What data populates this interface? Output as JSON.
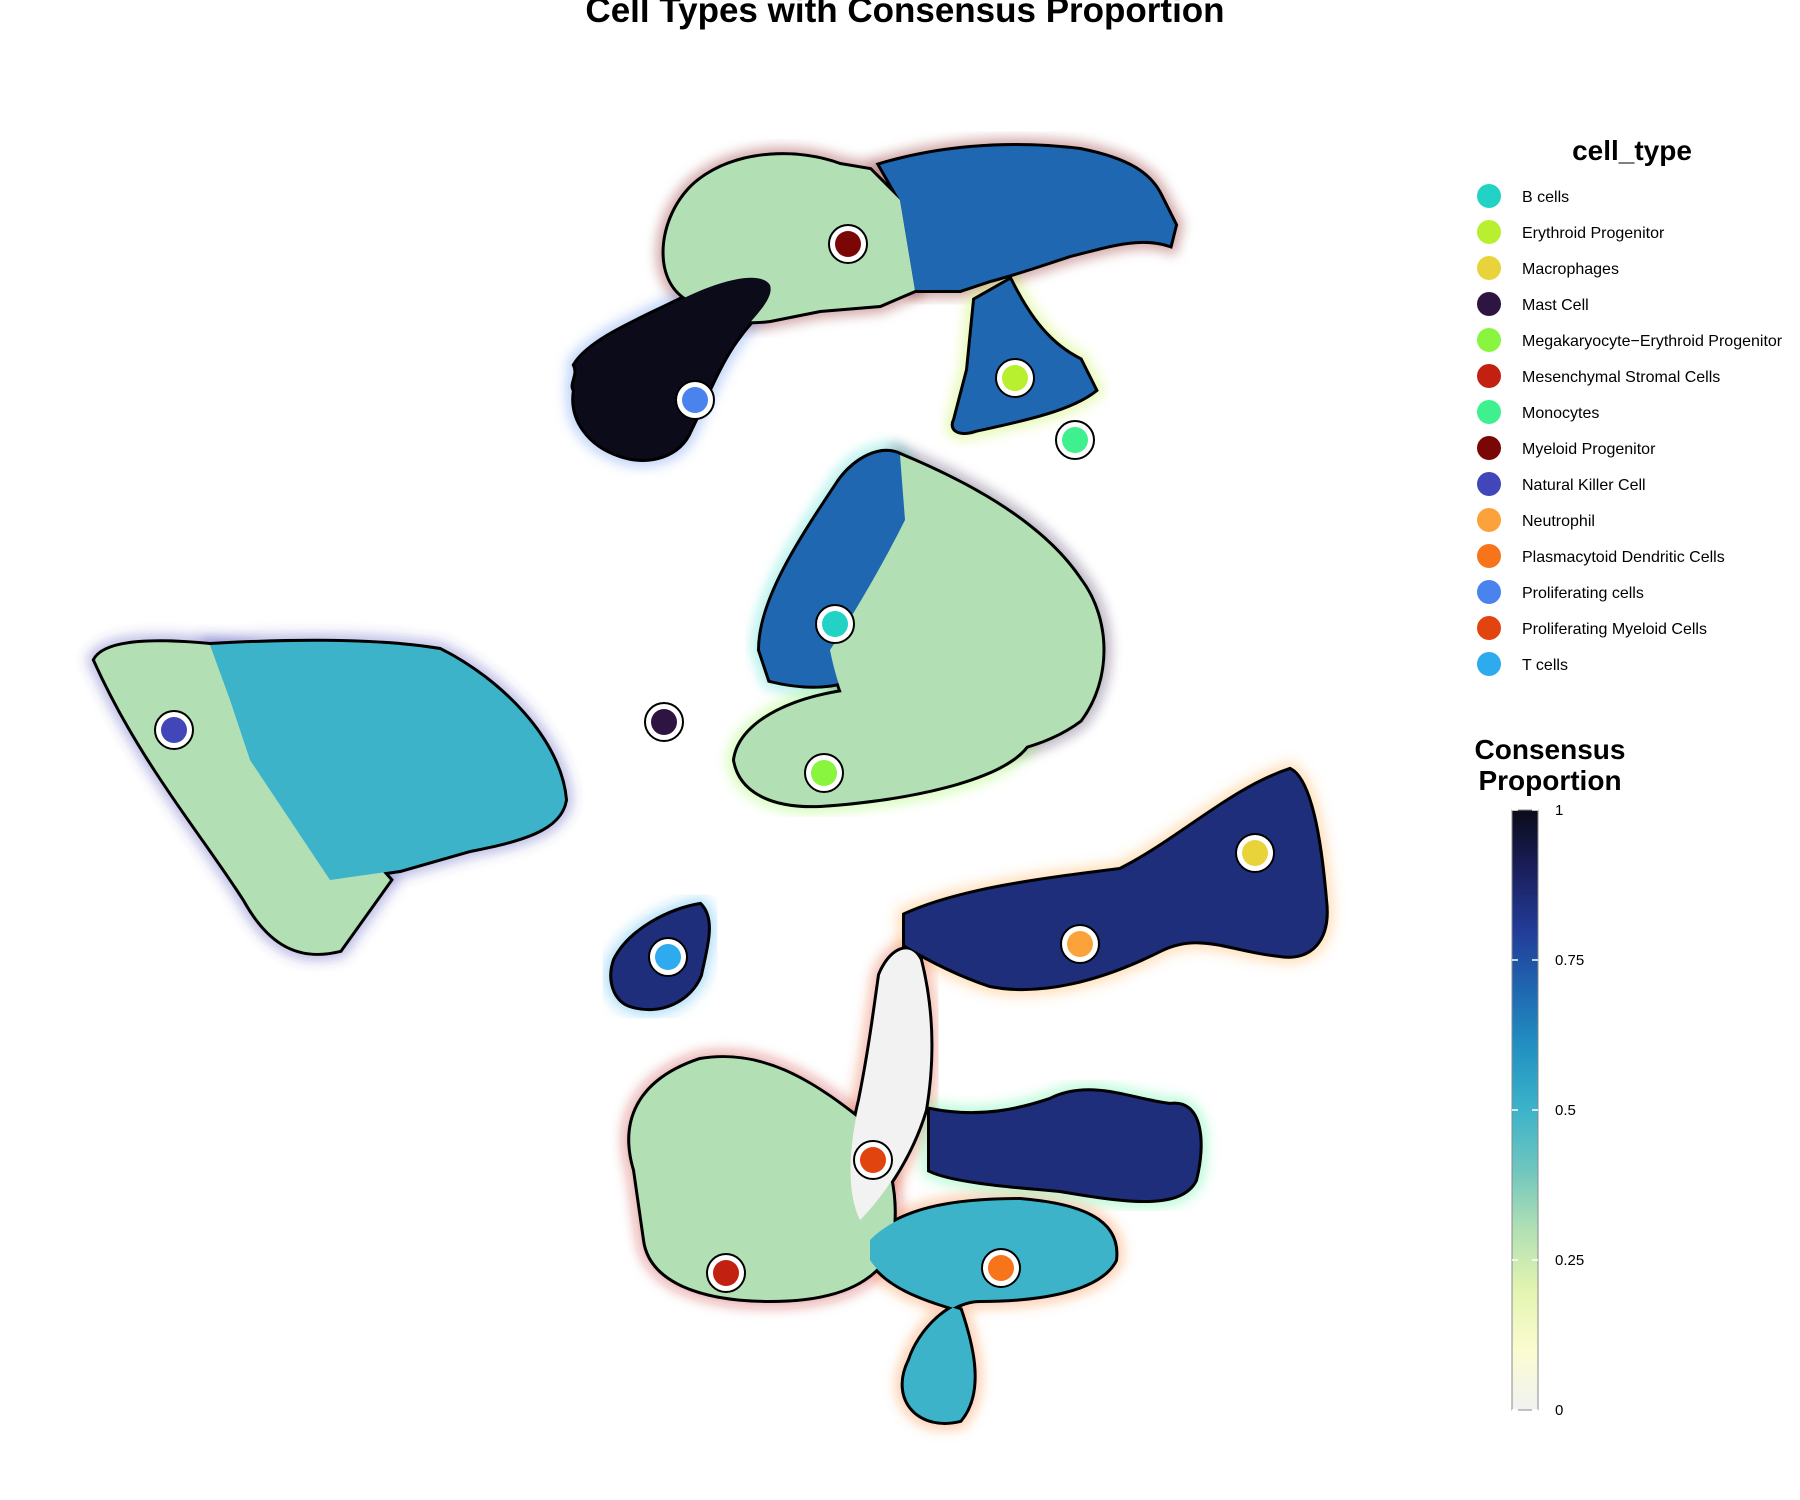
{
  "chart_data": {
    "type": "scatter",
    "title": "Cell Types with Consensus Proportion",
    "legend_position": "right",
    "cell_type_legend": {
      "title": "cell_type",
      "items": [
        {
          "label": "B cells",
          "color": "#22d3c5"
        },
        {
          "label": "Erythroid Progenitor",
          "color": "#b8ef2e"
        },
        {
          "label": "Macrophages",
          "color": "#e8d43a"
        },
        {
          "label": "Mast Cell",
          "color": "#2e1541"
        },
        {
          "label": "Megakaryocyte−Erythroid Progenitor",
          "color": "#8af53e"
        },
        {
          "label": "Mesenchymal Stromal Cells",
          "color": "#c22010"
        },
        {
          "label": "Monocytes",
          "color": "#3ef08e"
        },
        {
          "label": "Myeloid Progenitor",
          "color": "#7a0706"
        },
        {
          "label": "Natural Killer Cell",
          "color": "#4146b8"
        },
        {
          "label": "Neutrophil",
          "color": "#fba33a"
        },
        {
          "label": "Plasmacytoid Dendritic Cells",
          "color": "#f7741a"
        },
        {
          "label": "Proliferating cells",
          "color": "#4a82ee"
        },
        {
          "label": "Proliferating Myeloid Cells",
          "color": "#e24410"
        },
        {
          "label": "T cells",
          "color": "#2eaaee"
        }
      ]
    },
    "colorbar": {
      "title_line1": "Consensus",
      "title_line2": "Proportion",
      "min": 0,
      "max": 1,
      "ticks": [
        {
          "value": 1,
          "label": "1"
        },
        {
          "value": 0.75,
          "label": "0.75"
        },
        {
          "value": 0.5,
          "label": "0.5"
        },
        {
          "value": 0.25,
          "label": "0.25"
        },
        {
          "value": 0,
          "label": "0"
        }
      ],
      "gradient_colors": [
        "#f2f2f2",
        "#fbfcd0",
        "#e3f4b0",
        "#b2e0b4",
        "#6fc6be",
        "#3db3ca",
        "#2293c2",
        "#1f67b1",
        "#223c97",
        "#1a1f5c",
        "#0b0b1a"
      ]
    },
    "clusters": [
      {
        "cell_type": "Myeloid Progenitor",
        "proportion": 0.3,
        "centroid": [
          0.02,
          0.82
        ]
      },
      {
        "cell_type": "Myeloid Progenitor",
        "proportion": 0.7,
        "centroid": [
          0.3,
          0.86
        ]
      },
      {
        "cell_type": "Proliferating cells",
        "proportion": 1.0,
        "centroid": [
          -0.12,
          0.72
        ]
      },
      {
        "cell_type": "Erythroid Progenitor",
        "proportion": 0.7,
        "centroid": [
          0.25,
          0.71
        ]
      },
      {
        "cell_type": "B cells",
        "proportion": 0.7,
        "centroid": [
          0.0,
          0.45
        ]
      },
      {
        "cell_type": "Mast Cell",
        "proportion": 0.3,
        "centroid": [
          0.3,
          0.45
        ]
      },
      {
        "cell_type": "Megakaryocyte−Erythroid Progenitor",
        "proportion": 0.3,
        "centroid": [
          0.0,
          0.32
        ]
      },
      {
        "cell_type": "Natural Killer Cell",
        "proportion": 0.3,
        "centroid": [
          -0.8,
          0.4
        ]
      },
      {
        "cell_type": "Natural Killer Cell",
        "proportion": 0.5,
        "centroid": [
          -0.55,
          0.36
        ]
      },
      {
        "cell_type": "Neutrophil",
        "proportion": 0.85,
        "centroid": [
          0.4,
          0.1
        ]
      },
      {
        "cell_type": "T cells",
        "proportion": 0.85,
        "centroid": [
          -0.24,
          0.06
        ]
      },
      {
        "cell_type": "Mesenchymal Stromal Cells",
        "proportion": 0.3,
        "centroid": [
          -0.15,
          -0.33
        ]
      },
      {
        "cell_type": "Proliferating Myeloid Cells",
        "proportion": 0.0,
        "centroid": [
          0.05,
          -0.18
        ]
      },
      {
        "cell_type": "Plasmacytoid Dendritic Cells",
        "proportion": 0.5,
        "centroid": [
          0.18,
          -0.3
        ]
      },
      {
        "cell_type": "Monocytes",
        "proportion": 0.85,
        "centroid": [
          0.35,
          -0.18
        ]
      }
    ],
    "cluster_centers": [
      {
        "cell_type": "Myeloid Progenitor",
        "position": [
          0.0,
          0.8
        ]
      },
      {
        "cell_type": "Proliferating cells",
        "position": [
          -0.15,
          0.66
        ]
      },
      {
        "cell_type": "Erythroid Progenitor",
        "position": [
          0.17,
          0.68
        ]
      },
      {
        "cell_type": "Monocytes",
        "position": [
          0.24,
          0.64
        ]
      },
      {
        "cell_type": "B cells",
        "position": [
          -0.02,
          0.44
        ]
      },
      {
        "cell_type": "Mast Cell",
        "position": [
          -0.18,
          0.35
        ]
      },
      {
        "cell_type": "Megakaryocyte−Erythroid Progenitor",
        "position": [
          -0.04,
          0.31
        ]
      },
      {
        "cell_type": "Natural Killer Cell",
        "position": [
          -0.75,
          0.35
        ]
      },
      {
        "cell_type": "Macrophages",
        "position": [
          0.41,
          0.24
        ]
      },
      {
        "cell_type": "Neutrophil",
        "position": [
          0.26,
          0.16
        ]
      },
      {
        "cell_type": "T cells",
        "position": [
          -0.15,
          0.13
        ]
      },
      {
        "cell_type": "Proliferating Myeloid Cells",
        "position": [
          0.02,
          -0.12
        ]
      },
      {
        "cell_type": "Mesenchymal Stromal Cells",
        "position": [
          -0.11,
          -0.22
        ]
      },
      {
        "cell_type": "Plasmacytoid Dendritic Cells",
        "position": [
          0.16,
          -0.21
        ]
      }
    ]
  }
}
